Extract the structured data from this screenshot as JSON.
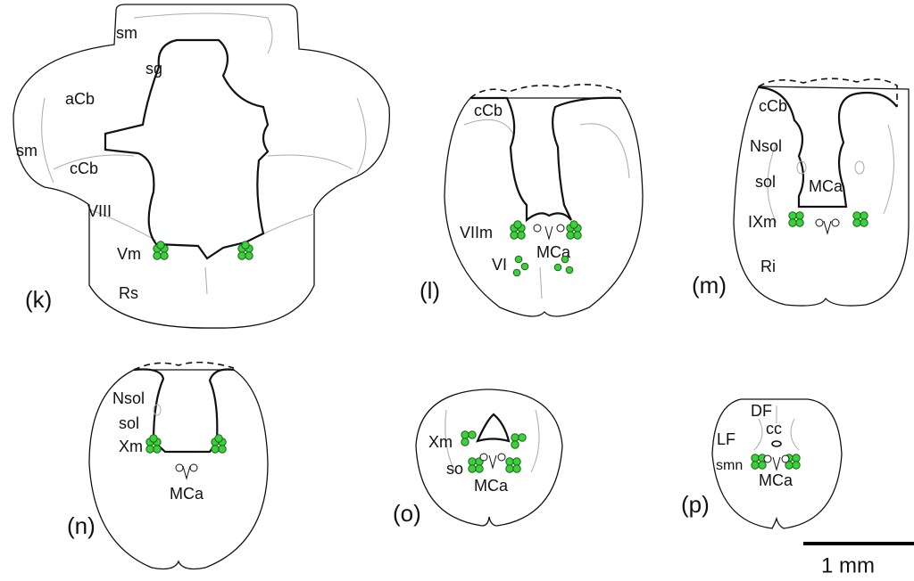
{
  "panels": [
    {
      "label": "(k)",
      "annotations": [
        "sm",
        "sg",
        "aCb",
        "sm",
        "cCb",
        "VIII",
        "Vm",
        "Rs"
      ]
    },
    {
      "label": "(l)",
      "annotations": [
        "cCb",
        "VIIm",
        "MCa",
        "VI"
      ]
    },
    {
      "label": "(m)",
      "annotations": [
        "cCb",
        "Nsol",
        "sol",
        "MCa",
        "IXm",
        "Ri"
      ]
    },
    {
      "label": "(n)",
      "annotations": [
        "Nsol",
        "sol",
        "Xm",
        "MCa"
      ]
    },
    {
      "label": "(o)",
      "annotations": [
        "Xm",
        "so",
        "MCa"
      ]
    },
    {
      "label": "(p)",
      "annotations": [
        "DF",
        "cc",
        "LF",
        "smn",
        "MCa"
      ]
    }
  ],
  "scale_bar": {
    "label": "1 mm"
  }
}
